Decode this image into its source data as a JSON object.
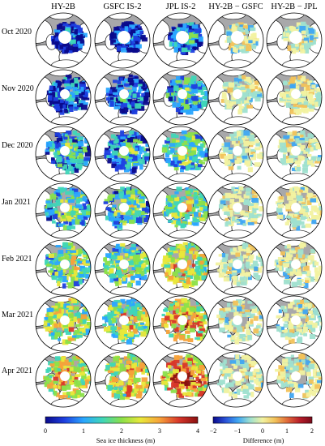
{
  "figure": {
    "columns": [
      "HY-2B",
      "GSFC IS-2",
      "JPL IS-2",
      "HY-2B − GSFC",
      "HY-2B − JPL"
    ],
    "rows": [
      "Oct 2020",
      "Nov 2020",
      "Dec 2020",
      "Jan 2021",
      "Feb 2021",
      "Mar 2021",
      "Apr 2021"
    ],
    "colorbars": [
      {
        "label": "Sea ice thickness (m)",
        "ticks": [
          "0",
          "1",
          "2",
          "3",
          "4"
        ],
        "colors": [
          "#0a0a8c",
          "#1e3fe0",
          "#2aa6ff",
          "#3fd6b8",
          "#8be04a",
          "#e9e83a",
          "#f7a23a",
          "#d8372a",
          "#8a1010"
        ]
      },
      {
        "label": "Difference (m)",
        "ticks": [
          "−2",
          "−1",
          "0",
          "1",
          "2"
        ],
        "colors": [
          "#0a0a8c",
          "#2a52d8",
          "#3fa6f2",
          "#9fe0cf",
          "#f2f2a0",
          "#f2c25a",
          "#e06a3a",
          "#b81e2a",
          "#7a0a1a"
        ]
      }
    ],
    "map_colors": {
      "ocean": "#a8a8aa",
      "land": "#ffffff",
      "coast": "#1a1a1a"
    }
  }
}
